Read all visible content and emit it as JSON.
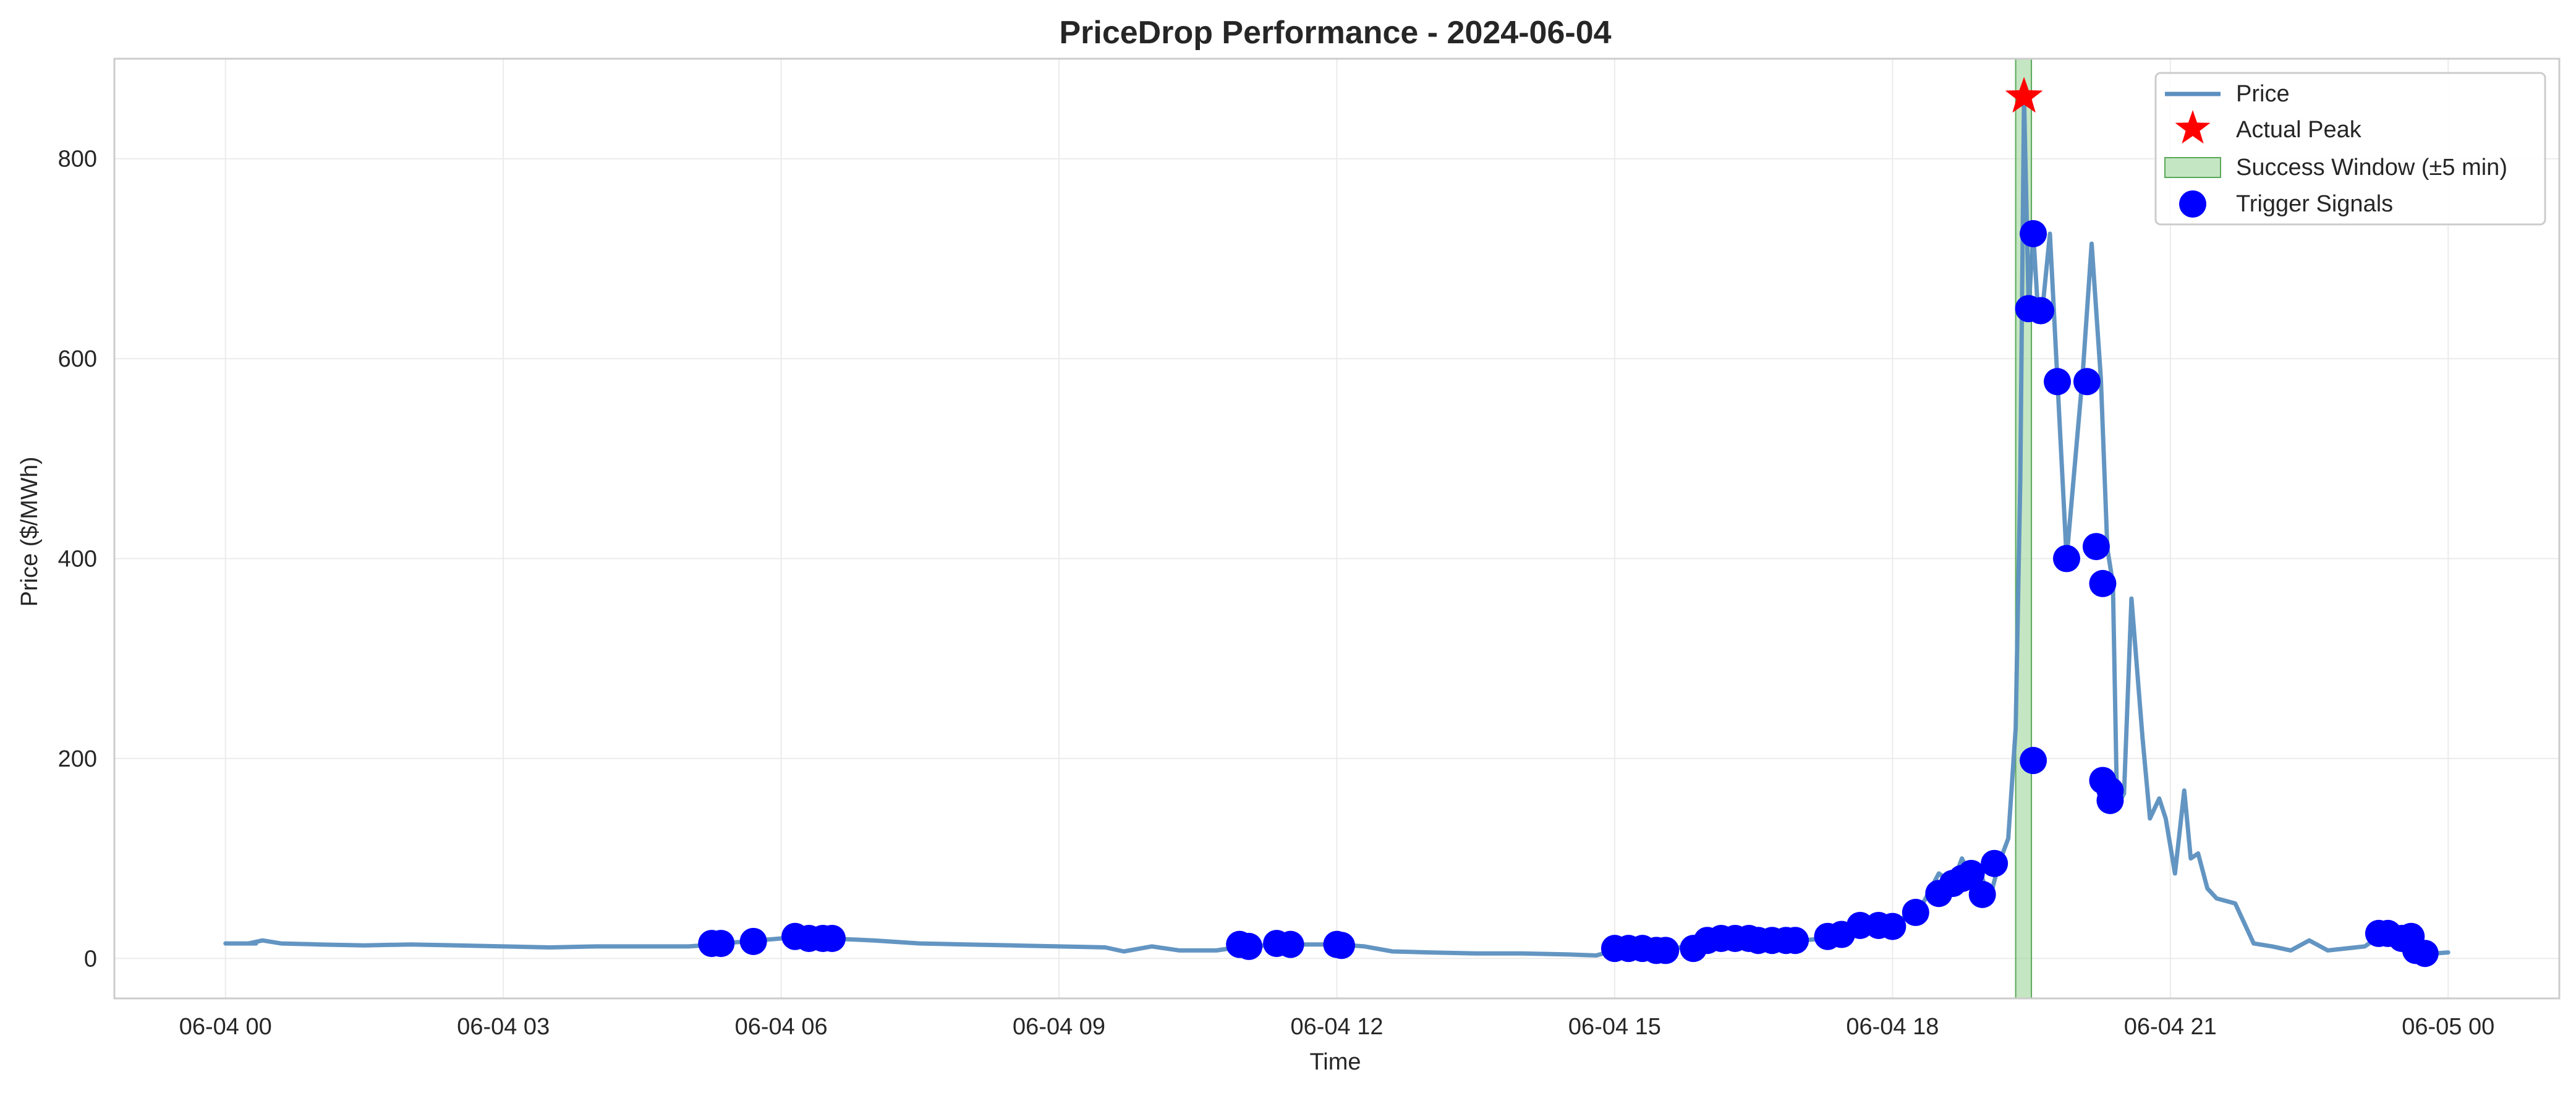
{
  "chart_data": {
    "type": "line",
    "title": "PriceDrop Performance - 2024-06-04",
    "xlabel": "Time",
    "ylabel": "Price ($/MWh)",
    "xlim_hours": [
      -1.2,
      25.2
    ],
    "ylim": [
      -40,
      900
    ],
    "x_ticks": [
      {
        "hour": 0,
        "label": "06-04 00"
      },
      {
        "hour": 3,
        "label": "06-04 03"
      },
      {
        "hour": 6,
        "label": "06-04 06"
      },
      {
        "hour": 9,
        "label": "06-04 09"
      },
      {
        "hour": 12,
        "label": "06-04 12"
      },
      {
        "hour": 15,
        "label": "06-04 15"
      },
      {
        "hour": 18,
        "label": "06-04 18"
      },
      {
        "hour": 21,
        "label": "06-04 21"
      },
      {
        "hour": 24,
        "label": "06-05 00"
      }
    ],
    "y_ticks": [
      {
        "value": 0,
        "label": "0"
      },
      {
        "value": 200,
        "label": "200"
      },
      {
        "value": 400,
        "label": "400"
      },
      {
        "value": 600,
        "label": "600"
      },
      {
        "value": 800,
        "label": "800"
      }
    ],
    "grid": true,
    "legend": {
      "placement": "top-right",
      "entries": [
        {
          "label": "Price"
        },
        {
          "label": "Actual Peak"
        },
        {
          "label": "Success Window (±5 min)"
        },
        {
          "label": "Trigger Signals"
        }
      ]
    },
    "colors": {
      "price": "#5b8fbf",
      "peak": "#ff0000",
      "window": "#9fd59a",
      "window_edge": "#5aa85a",
      "signal": "#0000ff"
    },
    "success_window_hours": [
      19.33,
      19.5
    ],
    "actual_peak": {
      "hour": 19.42,
      "value": 862
    },
    "price_series": [
      [
        0.0,
        15
      ],
      [
        0.33,
        15
      ],
      [
        0.33,
        15
      ],
      [
        0.25,
        15
      ],
      [
        0.4,
        18
      ],
      [
        0.6,
        15
      ],
      [
        1.0,
        14
      ],
      [
        1.5,
        13
      ],
      [
        2.0,
        14
      ],
      [
        2.5,
        13
      ],
      [
        3.0,
        12
      ],
      [
        3.5,
        11
      ],
      [
        4.0,
        12
      ],
      [
        4.5,
        12
      ],
      [
        5.0,
        12
      ],
      [
        5.3,
        14
      ],
      [
        5.5,
        16
      ],
      [
        6.0,
        20
      ],
      [
        6.5,
        20
      ],
      [
        7.0,
        18
      ],
      [
        7.5,
        15
      ],
      [
        8.0,
        14
      ],
      [
        8.5,
        13
      ],
      [
        9.0,
        12
      ],
      [
        9.5,
        11
      ],
      [
        9.7,
        7
      ],
      [
        10.0,
        12
      ],
      [
        10.3,
        8
      ],
      [
        10.7,
        8
      ],
      [
        11.0,
        12
      ],
      [
        11.5,
        14
      ],
      [
        12.0,
        14
      ],
      [
        12.3,
        12
      ],
      [
        12.6,
        7
      ],
      [
        13.0,
        6
      ],
      [
        13.5,
        5
      ],
      [
        14.0,
        5
      ],
      [
        14.5,
        4
      ],
      [
        14.8,
        3
      ],
      [
        15.0,
        8
      ],
      [
        15.5,
        9
      ],
      [
        15.8,
        12
      ],
      [
        16.0,
        16
      ],
      [
        16.5,
        20
      ],
      [
        17.0,
        18
      ],
      [
        17.3,
        20
      ],
      [
        17.6,
        28
      ],
      [
        18.0,
        35
      ],
      [
        18.3,
        50
      ],
      [
        18.5,
        85
      ],
      [
        18.65,
        75
      ],
      [
        18.75,
        100
      ],
      [
        18.85,
        80
      ],
      [
        18.95,
        85
      ],
      [
        19.05,
        60
      ],
      [
        19.15,
        95
      ],
      [
        19.25,
        120
      ],
      [
        19.33,
        230
      ],
      [
        19.38,
        480
      ],
      [
        19.42,
        862
      ],
      [
        19.47,
        650
      ],
      [
        19.52,
        725
      ],
      [
        19.57,
        648
      ],
      [
        19.63,
        660
      ],
      [
        19.7,
        725
      ],
      [
        19.78,
        580
      ],
      [
        19.88,
        400
      ],
      [
        20.05,
        580
      ],
      [
        20.15,
        715
      ],
      [
        20.25,
        580
      ],
      [
        20.32,
        410
      ],
      [
        20.38,
        375
      ],
      [
        20.42,
        175
      ],
      [
        20.47,
        160
      ],
      [
        20.5,
        165
      ],
      [
        20.58,
        360
      ],
      [
        20.7,
        220
      ],
      [
        20.78,
        140
      ],
      [
        20.88,
        160
      ],
      [
        20.95,
        140
      ],
      [
        21.05,
        85
      ],
      [
        21.15,
        168
      ],
      [
        21.22,
        100
      ],
      [
        21.3,
        105
      ],
      [
        21.4,
        70
      ],
      [
        21.5,
        60
      ],
      [
        21.7,
        55
      ],
      [
        21.9,
        15
      ],
      [
        22.1,
        12
      ],
      [
        22.3,
        8
      ],
      [
        22.5,
        18
      ],
      [
        22.7,
        8
      ],
      [
        22.9,
        10
      ],
      [
        23.1,
        12
      ],
      [
        23.3,
        25
      ],
      [
        23.5,
        22
      ],
      [
        23.7,
        10
      ],
      [
        23.85,
        5
      ],
      [
        24.0,
        6
      ]
    ],
    "trigger_signals": [
      [
        5.25,
        15
      ],
      [
        5.35,
        15
      ],
      [
        5.7,
        17
      ],
      [
        6.15,
        22
      ],
      [
        6.3,
        20
      ],
      [
        6.45,
        20
      ],
      [
        6.55,
        20
      ],
      [
        10.95,
        14
      ],
      [
        11.05,
        12
      ],
      [
        11.35,
        15
      ],
      [
        11.5,
        14
      ],
      [
        12.0,
        14
      ],
      [
        12.05,
        13
      ],
      [
        15.0,
        10
      ],
      [
        15.15,
        10
      ],
      [
        15.3,
        10
      ],
      [
        15.45,
        8
      ],
      [
        15.55,
        8
      ],
      [
        15.85,
        10
      ],
      [
        16.0,
        18
      ],
      [
        16.15,
        20
      ],
      [
        16.3,
        20
      ],
      [
        16.45,
        20
      ],
      [
        16.55,
        18
      ],
      [
        16.7,
        18
      ],
      [
        16.85,
        18
      ],
      [
        16.95,
        18
      ],
      [
        17.3,
        22
      ],
      [
        17.45,
        24
      ],
      [
        17.65,
        33
      ],
      [
        17.85,
        33
      ],
      [
        18.0,
        32
      ],
      [
        18.25,
        46
      ],
      [
        18.5,
        65
      ],
      [
        18.65,
        75
      ],
      [
        18.75,
        80
      ],
      [
        18.85,
        85
      ],
      [
        18.97,
        64
      ],
      [
        19.1,
        95
      ],
      [
        19.47,
        650
      ],
      [
        19.52,
        725
      ],
      [
        19.52,
        198
      ],
      [
        19.6,
        648
      ],
      [
        19.78,
        577
      ],
      [
        19.88,
        400
      ],
      [
        20.1,
        577
      ],
      [
        20.2,
        412
      ],
      [
        20.27,
        375
      ],
      [
        20.27,
        178
      ],
      [
        20.35,
        158
      ],
      [
        20.35,
        168
      ],
      [
        23.25,
        25
      ],
      [
        23.35,
        25
      ],
      [
        23.5,
        20
      ],
      [
        23.6,
        22
      ],
      [
        23.65,
        8
      ],
      [
        23.75,
        5
      ]
    ]
  }
}
